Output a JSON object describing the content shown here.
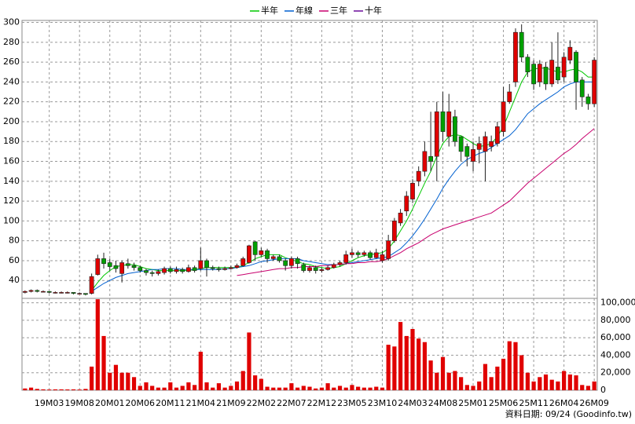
{
  "chart_data": {
    "type": "candlestick",
    "source_note": "資料日期: 09/24 (Goodinfo.tw)",
    "categories": [
      null,
      null,
      null,
      null,
      "19M03",
      null,
      null,
      null,
      null,
      "19M08",
      null,
      null,
      null,
      null,
      "20M01",
      null,
      null,
      null,
      null,
      "20M06",
      null,
      null,
      null,
      null,
      "20M11",
      null,
      null,
      null,
      null,
      "21M04",
      null,
      null,
      null,
      null,
      "21M09",
      null,
      null,
      null,
      null,
      "22M02",
      null,
      null,
      null,
      null,
      "22M07",
      null,
      null,
      null,
      null,
      "22M12",
      null,
      null,
      null,
      null,
      "23M05",
      null,
      null,
      null,
      null,
      "23M10",
      null,
      null,
      null,
      null,
      "24M03",
      null,
      null,
      null,
      null,
      "24M08",
      null,
      null,
      null,
      null,
      "25M01",
      null,
      null,
      null,
      null,
      "25M06",
      null,
      null,
      null,
      null,
      "25M11",
      null,
      null,
      null,
      null,
      "26M04",
      null,
      null,
      null,
      null,
      "26M09"
    ],
    "open": [
      28,
      29,
      30,
      29,
      29,
      28,
      28,
      28,
      28,
      27,
      27,
      27,
      46,
      62,
      58,
      55,
      47,
      57,
      55,
      53,
      50,
      48,
      47,
      48,
      52,
      49,
      51,
      49,
      53,
      52,
      60,
      53,
      52,
      51,
      52,
      53,
      55,
      58,
      79,
      66,
      70,
      62,
      64,
      60,
      55,
      62,
      56,
      50,
      53,
      50,
      51,
      53,
      56,
      58,
      66,
      68,
      66,
      68,
      63,
      60,
      62,
      80,
      98,
      110,
      122,
      140,
      150,
      165,
      165,
      210,
      185,
      205,
      185,
      175,
      160,
      172,
      170,
      175,
      178,
      190,
      220,
      240,
      290,
      265,
      258,
      240,
      255,
      238,
      255,
      245,
      262,
      270,
      242,
      225,
      218
    ],
    "high": [
      30,
      31,
      31,
      30,
      29,
      29,
      29,
      29,
      28,
      28,
      27,
      47,
      66,
      68,
      62,
      60,
      60,
      62,
      58,
      55,
      52,
      50,
      51,
      54,
      54,
      54,
      53,
      56,
      55,
      73,
      62,
      55,
      54,
      54,
      55,
      57,
      64,
      76,
      80,
      73,
      72,
      66,
      66,
      62,
      64,
      64,
      58,
      55,
      55,
      53,
      55,
      58,
      60,
      70,
      72,
      70,
      70,
      70,
      72,
      70,
      86,
      103,
      112,
      130,
      142,
      155,
      180,
      210,
      220,
      230,
      228,
      212,
      185,
      178,
      180,
      185,
      190,
      186,
      200,
      235,
      238,
      294,
      298,
      268,
      262,
      262,
      260,
      280,
      290,
      270,
      282,
      272,
      245,
      228,
      265
    ],
    "low": [
      27,
      28,
      28,
      28,
      27,
      27,
      27,
      27,
      26,
      26,
      25,
      26,
      45,
      52,
      50,
      48,
      38,
      52,
      50,
      48,
      45,
      44,
      45,
      46,
      47,
      47,
      47,
      48,
      48,
      50,
      44,
      50,
      49,
      50,
      51,
      52,
      54,
      57,
      60,
      64,
      58,
      60,
      58,
      50,
      52,
      52,
      48,
      48,
      47,
      48,
      50,
      52,
      54,
      56,
      63,
      63,
      64,
      61,
      62,
      58,
      60,
      78,
      95,
      105,
      118,
      135,
      145,
      150,
      140,
      180,
      175,
      175,
      160,
      155,
      150,
      158,
      140,
      170,
      175,
      185,
      218,
      235,
      260,
      245,
      232,
      235,
      232,
      235,
      238,
      240,
      258,
      212,
      215,
      212,
      215
    ],
    "close": [
      29,
      30,
      29,
      29,
      28,
      28,
      28,
      28,
      27,
      27,
      26,
      44,
      62,
      57,
      54,
      52,
      58,
      55,
      53,
      50,
      48,
      47,
      49,
      52,
      49,
      51,
      49,
      53,
      50,
      60,
      53,
      52,
      51,
      52,
      53,
      55,
      62,
      75,
      66,
      70,
      62,
      64,
      60,
      55,
      62,
      57,
      50,
      53,
      50,
      51,
      53,
      56,
      58,
      66,
      68,
      66,
      68,
      63,
      68,
      66,
      80,
      100,
      108,
      125,
      138,
      150,
      170,
      160,
      210,
      190,
      210,
      180,
      170,
      165,
      172,
      178,
      185,
      180,
      195,
      220,
      230,
      290,
      265,
      250,
      238,
      258,
      238,
      262,
      242,
      265,
      275,
      240,
      225,
      218,
      262
    ],
    "up_color": "#e00000",
    "down_color": "#00a000",
    "ylim": [
      22,
      302
    ],
    "yticks": [
      40,
      60,
      80,
      100,
      120,
      140,
      160,
      180,
      200,
      220,
      240,
      260,
      280,
      300
    ],
    "grid": true,
    "ma_series": [
      {
        "name": "半年",
        "color": "#00c800",
        "values": [
          null,
          null,
          null,
          null,
          null,
          null,
          null,
          null,
          null,
          null,
          null,
          30,
          38,
          45,
          50,
          54,
          55,
          56,
          56,
          54,
          52,
          51,
          50,
          50,
          50,
          50,
          50,
          50,
          51,
          52,
          53,
          53,
          53,
          53,
          53,
          53,
          55,
          58,
          62,
          64,
          66,
          66,
          66,
          63,
          61,
          59,
          57,
          56,
          54,
          53,
          52,
          53,
          54,
          57,
          60,
          63,
          65,
          66,
          67,
          68,
          72,
          80,
          90,
          100,
          112,
          125,
          138,
          150,
          165,
          178,
          185,
          187,
          186,
          182,
          178,
          175,
          176,
          178,
          185,
          195,
          210,
          225,
          240,
          250,
          253,
          254,
          254,
          252,
          250,
          250,
          252,
          253,
          250,
          245,
          245
        ]
      },
      {
        "name": "年線",
        "color": "#0060d0",
        "values": [
          null,
          null,
          null,
          null,
          null,
          null,
          null,
          null,
          null,
          null,
          null,
          29,
          33,
          37,
          40,
          43,
          45,
          47,
          48,
          49,
          50,
          51,
          51,
          52,
          52,
          52,
          51,
          51,
          51,
          51,
          51,
          51,
          51,
          52,
          52,
          53,
          54,
          55,
          57,
          59,
          60,
          61,
          62,
          62,
          62,
          62,
          60,
          59,
          58,
          57,
          56,
          56,
          56,
          57,
          58,
          59,
          60,
          61,
          62,
          63,
          64,
          68,
          72,
          78,
          85,
          93,
          102,
          112,
          122,
          133,
          142,
          150,
          157,
          162,
          165,
          168,
          170,
          174,
          178,
          182,
          186,
          192,
          200,
          208,
          213,
          218,
          222,
          226,
          230,
          235,
          238,
          240,
          240,
          240,
          240
        ]
      },
      {
        "name": "三年",
        "color": "#c8006e",
        "values": [
          null,
          null,
          null,
          null,
          null,
          null,
          null,
          null,
          null,
          null,
          null,
          null,
          null,
          null,
          null,
          null,
          null,
          null,
          null,
          null,
          null,
          null,
          null,
          null,
          null,
          null,
          null,
          null,
          null,
          null,
          null,
          null,
          null,
          null,
          null,
          45,
          46,
          47,
          48,
          49,
          50,
          51,
          52,
          52,
          53,
          53,
          54,
          54,
          54,
          55,
          55,
          56,
          56,
          57,
          57,
          58,
          58,
          59,
          59,
          60,
          62,
          65,
          68,
          72,
          75,
          78,
          82,
          86,
          89,
          92,
          94,
          96,
          98,
          100,
          102,
          104,
          106,
          108,
          112,
          116,
          120,
          126,
          132,
          138,
          143,
          148,
          153,
          158,
          163,
          168,
          172,
          177,
          183,
          188,
          193
        ]
      },
      {
        "name": "十年",
        "color": "#6a0a9a",
        "values": [
          null,
          null,
          null,
          null,
          null,
          null,
          null,
          null,
          null,
          null,
          null,
          null,
          null,
          null,
          null,
          null,
          null,
          null,
          null,
          null,
          null,
          null,
          null,
          null,
          null,
          null,
          null,
          null,
          null,
          null,
          null,
          null,
          null,
          null,
          null,
          null,
          null,
          null,
          null,
          null,
          null,
          null,
          null,
          null,
          null,
          null,
          null,
          null,
          null,
          null,
          null,
          null,
          null,
          null,
          null,
          null,
          null,
          null,
          null,
          null,
          null,
          null,
          null,
          null,
          null,
          null,
          null,
          null,
          null,
          null,
          null,
          null,
          null,
          null,
          null,
          null,
          null,
          null,
          null,
          null,
          null,
          null,
          null,
          null,
          null,
          null,
          null,
          null,
          null,
          null,
          null,
          null,
          null,
          null,
          null
        ]
      }
    ],
    "volume": {
      "color": "#e00000",
      "values": [
        2000,
        3000,
        1500,
        1000,
        800,
        1000,
        1000,
        900,
        1000,
        800,
        1500,
        27000,
        104000,
        62000,
        20000,
        29000,
        20000,
        20000,
        15000,
        5000,
        9000,
        5000,
        3000,
        3000,
        9000,
        3000,
        5000,
        9000,
        6000,
        44000,
        9000,
        3000,
        8000,
        3000,
        5000,
        10000,
        22000,
        66000,
        17000,
        13000,
        4000,
        3000,
        3000,
        3000,
        8000,
        3000,
        5000,
        4000,
        2000,
        3000,
        8000,
        3000,
        5000,
        3000,
        6000,
        4000,
        3000,
        3000,
        4000,
        3000,
        52000,
        50000,
        78000,
        62000,
        70000,
        59000,
        55000,
        34000,
        20000,
        38000,
        20000,
        22000,
        15000,
        6000,
        5000,
        10000,
        30000,
        15000,
        27000,
        36000,
        56000,
        55000,
        40000,
        20000,
        10000,
        15000,
        18000,
        12000,
        10000,
        22000,
        18000,
        17000,
        6000,
        5000,
        10000
      ],
      "ylim": [
        0,
        105000
      ],
      "yticks": [
        0,
        {
          "value": 20000,
          "label": "20,000"
        },
        {
          "value": 40000,
          "label": "40,000"
        },
        {
          "value": 60000,
          "label": "60,000"
        },
        {
          "value": 80000,
          "label": "80,000"
        },
        {
          "value": 100000,
          "label": "100,000"
        }
      ]
    }
  }
}
